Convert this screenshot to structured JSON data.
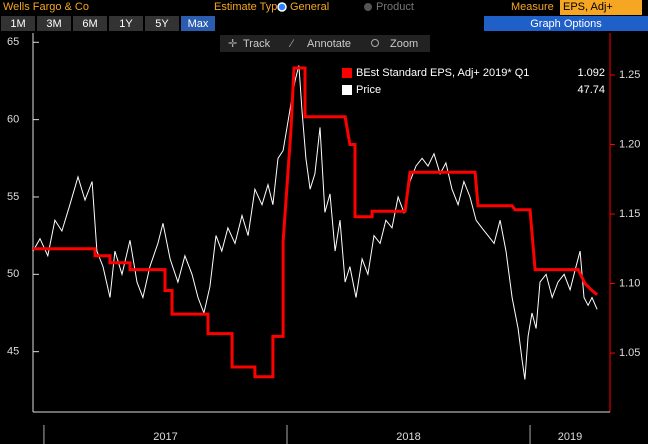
{
  "ui": {
    "company": "Wells Fargo & Co",
    "estimate_type": "Estimate Type",
    "options": [
      "General",
      "Product"
    ],
    "measure": "Measure",
    "measure_value": "EPS, Adj+",
    "periods": [
      "1M",
      "3M",
      "6M",
      "1Y",
      "5Y",
      "Max"
    ],
    "graph_options": "Graph Options",
    "tools": [
      "Track",
      "Annotate",
      "Zoom"
    ]
  },
  "chart_data": {
    "type": "line",
    "xlim": [
      2016.955,
      2019.329
    ],
    "xticks": [
      2017,
      2018,
      2019
    ],
    "ylim": [
      41.1,
      65.6
    ],
    "yticks": [
      45,
      50,
      55,
      60,
      65
    ],
    "y2lim": [
      1.0076,
      1.2802
    ],
    "y2ticks": [
      1.05,
      {
        "value": 1.1,
        "label": "1.10"
      },
      1.15,
      {
        "value": 1.2,
        "label": "1.20"
      },
      1.25
    ],
    "series": [
      {
        "name": "BEst Standard EPS, Adj+ 2019* Q1",
        "legend_value": "1.092",
        "color": "#ff0000",
        "axis": "y2",
        "x": [
          2016.955,
          2017.21,
          2017.21,
          2017.272,
          2017.272,
          2017.354,
          2017.354,
          2017.498,
          2017.498,
          2017.527,
          2017.527,
          2017.675,
          2017.675,
          2017.774,
          2017.774,
          2017.868,
          2017.868,
          2017.942,
          2017.942,
          2017.984,
          2017.984,
          2018.0,
          2018.016,
          2018.029,
          2018.074,
          2018.074,
          2018.239,
          2018.259,
          2018.28,
          2018.28,
          2018.35,
          2018.35,
          2018.486,
          2018.506,
          2018.774,
          2018.786,
          2018.926,
          2018.938,
          2019.0,
          2019.021,
          2019.198,
          2019.226,
          2019.255,
          2019.276
        ],
        "values": [
          1.125,
          1.125,
          1.12,
          1.12,
          1.115,
          1.115,
          1.11,
          1.11,
          1.095,
          1.095,
          1.078,
          1.078,
          1.064,
          1.064,
          1.04,
          1.04,
          1.033,
          1.033,
          1.062,
          1.062,
          1.13,
          1.17,
          1.21,
          1.255,
          1.255,
          1.22,
          1.22,
          1.2,
          1.2,
          1.148,
          1.148,
          1.152,
          1.152,
          1.18,
          1.18,
          1.156,
          1.156,
          1.153,
          1.153,
          1.11,
          1.11,
          1.1,
          1.095,
          1.092
        ]
      },
      {
        "name": "Price",
        "legend_value": "47.74",
        "color": "#ffffff",
        "x": [
          2016.955,
          2016.984,
          2017.016,
          2017.045,
          2017.074,
          2017.107,
          2017.14,
          2017.169,
          2017.198,
          2017.218,
          2017.243,
          2017.272,
          2017.292,
          2017.321,
          2017.354,
          2017.383,
          2017.407,
          2017.436,
          2017.469,
          2017.49,
          2017.519,
          2017.551,
          2017.58,
          2017.609,
          2017.634,
          2017.658,
          2017.683,
          2017.708,
          2017.732,
          2017.757,
          2017.786,
          2017.815,
          2017.84,
          2017.868,
          2017.897,
          2017.922,
          2017.942,
          2017.963,
          2017.984,
          2018.0,
          2018.016,
          2018.033,
          2018.049,
          2018.062,
          2018.078,
          2018.095,
          2018.115,
          2018.136,
          2018.156,
          2018.177,
          2018.198,
          2018.218,
          2018.239,
          2018.259,
          2018.284,
          2018.309,
          2018.333,
          2018.358,
          2018.383,
          2018.407,
          2018.432,
          2018.457,
          2018.481,
          2018.506,
          2018.531,
          2018.556,
          2018.58,
          2018.605,
          2018.63,
          2018.654,
          2018.679,
          2018.704,
          2018.728,
          2018.753,
          2018.778,
          2018.802,
          2018.827,
          2018.852,
          2018.877,
          2018.901,
          2018.926,
          2018.951,
          2018.967,
          2018.979,
          2018.992,
          2019.008,
          2019.025,
          2019.041,
          2019.066,
          2019.091,
          2019.115,
          2019.14,
          2019.165,
          2019.189,
          2019.206,
          2019.222,
          2019.239,
          2019.255,
          2019.276
        ],
        "values": [
          51.5,
          52.3,
          51.2,
          53.5,
          52.8,
          54.5,
          56.3,
          54.8,
          56.0,
          51.5,
          50.5,
          48.5,
          51.5,
          50.0,
          52.2,
          49.5,
          48.5,
          50.5,
          52.0,
          53.3,
          51.0,
          49.5,
          51.2,
          50.0,
          48.5,
          47.5,
          49.2,
          52.5,
          51.5,
          53.0,
          52.0,
          53.8,
          52.5,
          55.5,
          54.5,
          55.8,
          54.5,
          57.5,
          58.0,
          59.5,
          61.0,
          62.5,
          63.5,
          60.5,
          57.5,
          55.5,
          56.5,
          59.5,
          54.0,
          55.2,
          51.5,
          53.5,
          49.5,
          50.5,
          48.5,
          51.0,
          50.0,
          52.5,
          52.0,
          53.5,
          53.0,
          55.0,
          54.0,
          56.0,
          57.0,
          57.5,
          57.0,
          57.8,
          56.5,
          57.2,
          55.5,
          54.5,
          56.0,
          55.0,
          53.5,
          53.0,
          52.5,
          52.0,
          53.5,
          51.5,
          48.5,
          46.5,
          44.5,
          43.2,
          46.0,
          47.5,
          46.5,
          49.5,
          50.0,
          48.5,
          49.5,
          50.0,
          49.0,
          50.5,
          51.5,
          48.5,
          48.0,
          48.5,
          47.74
        ]
      }
    ]
  }
}
